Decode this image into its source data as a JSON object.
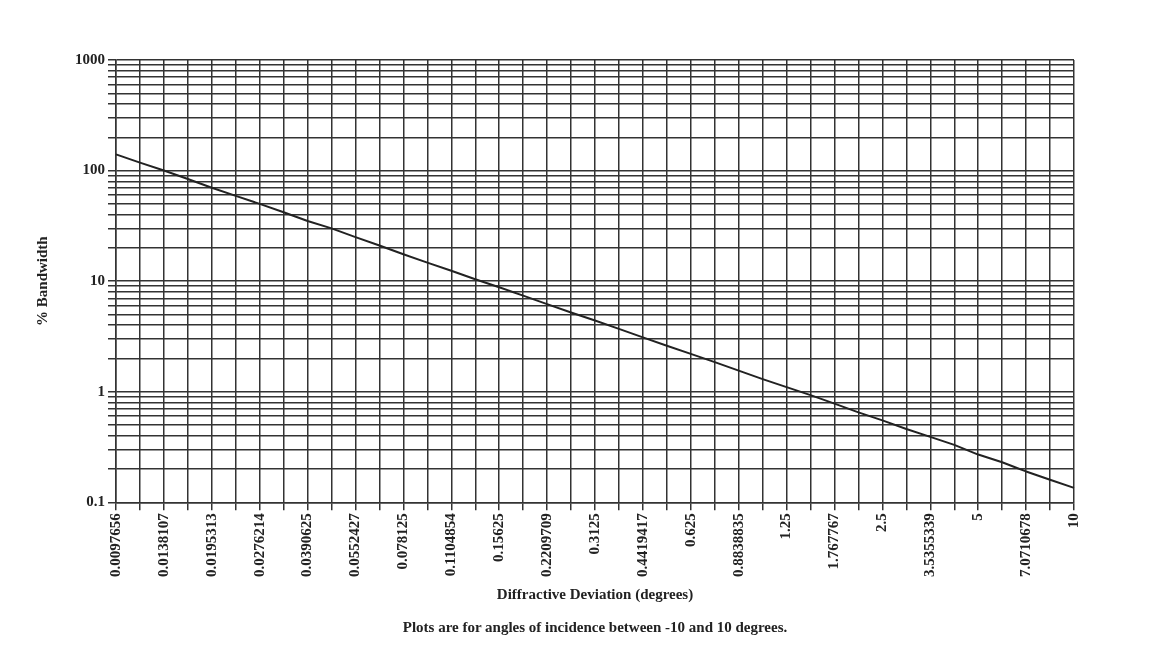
{
  "chart_data": {
    "type": "line",
    "xlabel": "Diffractive Deviation (degrees)",
    "ylabel": "% Bandwidth",
    "annotations": [
      "Plots are for angles of incidence between -10 and 10 degrees."
    ],
    "categories": [
      "0.0097656",
      null,
      "0.0138107",
      null,
      "0.0195313",
      null,
      "0.0276214",
      null,
      "0.0390625",
      null,
      "0.0552427",
      null,
      "0.078125",
      null,
      "0.1104854",
      null,
      "0.15625",
      null,
      "0.2209709",
      null,
      "0.3125",
      null,
      "0.4419417",
      null,
      "0.625",
      null,
      "0.8838835",
      null,
      "1.25",
      null,
      "1.767767",
      null,
      "2.5",
      null,
      "3.5355339",
      null,
      "5",
      null,
      "7.0710678",
      null,
      "10"
    ],
    "series": [
      {
        "color": "#222222",
        "values": [
          140,
          118,
          100,
          84,
          70,
          59,
          50,
          42,
          35,
          30,
          25,
          21,
          17.5,
          14.7,
          12.4,
          10.4,
          8.8,
          7.4,
          6.2,
          5.2,
          4.4,
          3.7,
          3.1,
          2.6,
          2.2,
          1.85,
          1.55,
          1.3,
          1.1,
          0.93,
          0.78,
          0.65,
          0.55,
          0.46,
          0.39,
          0.33,
          0.27,
          0.23,
          0.19,
          0.16,
          0.135
        ]
      }
    ],
    "log": "y",
    "ylim": [
      0.1,
      1000
    ],
    "yticks": [
      0.1,
      {
        "value": 0.2,
        "label": null
      },
      {
        "value": 0.3,
        "label": null
      },
      {
        "value": 0.4,
        "label": null
      },
      {
        "value": 0.5,
        "label": null
      },
      {
        "value": 0.6,
        "label": null
      },
      {
        "value": 0.7,
        "label": null
      },
      {
        "value": 0.8,
        "label": null
      },
      {
        "value": 0.9,
        "label": null
      },
      1,
      {
        "value": 2,
        "label": null
      },
      {
        "value": 3,
        "label": null
      },
      {
        "value": 4,
        "label": null
      },
      {
        "value": 5,
        "label": null
      },
      {
        "value": 6,
        "label": null
      },
      {
        "value": 7,
        "label": null
      },
      {
        "value": 8,
        "label": null
      },
      {
        "value": 9,
        "label": null
      },
      10,
      {
        "value": 20,
        "label": null
      },
      {
        "value": 30,
        "label": null
      },
      {
        "value": 40,
        "label": null
      },
      {
        "value": 50,
        "label": null
      },
      {
        "value": 60,
        "label": null
      },
      {
        "value": 70,
        "label": null
      },
      {
        "value": 80,
        "label": null
      },
      {
        "value": 90,
        "label": null
      },
      100,
      {
        "value": 200,
        "label": null
      },
      {
        "value": 300,
        "label": null
      },
      {
        "value": 400,
        "label": null
      },
      {
        "value": 500,
        "label": null
      },
      {
        "value": 600,
        "label": null
      },
      {
        "value": 700,
        "label": null
      },
      {
        "value": 800,
        "label": null
      },
      {
        "value": 900,
        "label": null
      },
      1000
    ],
    "grid": true,
    "legend": false,
    "marker": "none",
    "line_style": "solid"
  }
}
